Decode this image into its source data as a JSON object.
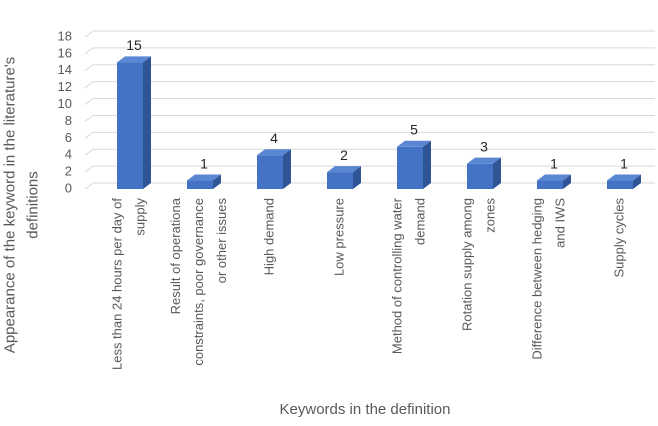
{
  "chart_data": {
    "type": "bar3d",
    "y_axis_title": "Appearance of the keyword in the literature's\ndefinitions",
    "x_axis_title": "Keywords in the definition",
    "categories": [
      "Less than 24 hours per day of\nsupply",
      "Result of operationa\nconstraints, poor governance\nor other issues",
      "High demand",
      "Low pressure",
      "Method of controlling water\ndemand",
      "Rotation supply among\nzones",
      "Difference between hedging\nand IWS",
      "Supply cycles"
    ],
    "values": [
      15,
      1,
      4,
      2,
      5,
      3,
      1,
      1
    ],
    "color": "#4472c4",
    "ylim": [
      0,
      18
    ],
    "yticks": [
      0,
      2,
      4,
      6,
      8,
      10,
      12,
      14,
      16,
      18
    ],
    "grid": true
  }
}
